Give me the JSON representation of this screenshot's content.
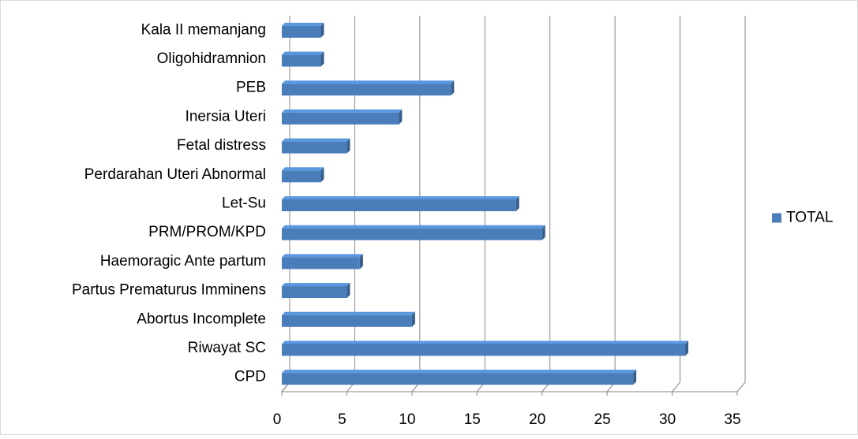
{
  "chart_data": {
    "type": "bar",
    "orientation": "horizontal",
    "categories": [
      "CPD",
      "Riwayat SC",
      "Abortus Incomplete",
      "Partus Prematurus Imminens",
      "Haemoragic Ante partum",
      "PRM/PROM/KPD",
      "Let-Su",
      "Perdarahan Uteri Abnormal",
      "Fetal distress",
      "Inersia Uteri",
      "PEB",
      "Oligohidramnion",
      "Kala II memanjang"
    ],
    "series": [
      {
        "name": "TOTAL",
        "color": "#4a7ebb",
        "values": [
          27,
          31,
          10,
          5,
          6,
          20,
          18,
          3,
          5,
          9,
          13,
          3,
          3
        ]
      }
    ],
    "xlim": [
      0,
      35
    ],
    "xticks": [
      0,
      5,
      10,
      15,
      20,
      25,
      30,
      35
    ],
    "grid": true,
    "legend": "right"
  }
}
